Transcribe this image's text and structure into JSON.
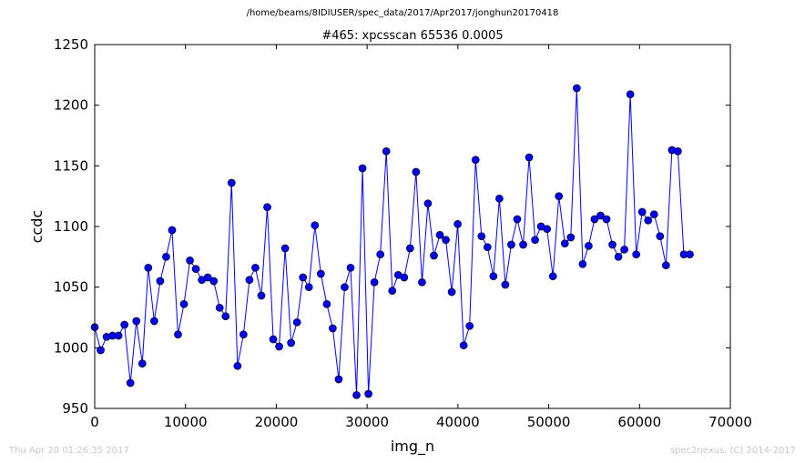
{
  "suptitle": "/home/beams/8IDIUSER/spec_data/2017/Apr2017/jonghun20170418",
  "footer_left": "Thu Apr 20 01:26:35 2017",
  "footer_right": "spec2nexus, (C) 2014-2017",
  "colors": {
    "series": "#0000ff",
    "marker_edge": "#000000"
  },
  "chart_data": {
    "type": "line",
    "title": "#465: xpcsscan 65536 0.0005",
    "xlabel": "img_n",
    "ylabel": "ccdc",
    "xlim": [
      0,
      70000
    ],
    "ylim": [
      950,
      1250
    ],
    "xticks": [
      0,
      10000,
      20000,
      30000,
      40000,
      50000,
      60000,
      70000
    ],
    "yticks": [
      950,
      1000,
      1050,
      1100,
      1150,
      1200,
      1250
    ],
    "grid": false,
    "series": [
      {
        "markers": "circle",
        "x": [
          0,
          655,
          1311,
          1966,
          2621,
          3277,
          3932,
          4587,
          5243,
          5898,
          6554,
          7209,
          7864,
          8520,
          9175,
          9830,
          10486,
          11141,
          11796,
          12452,
          13107,
          13763,
          14418,
          15073,
          15729,
          16384,
          17039,
          17695,
          18350,
          19005,
          19661,
          20316,
          20972,
          21627,
          22282,
          22938,
          23593,
          24248,
          24904,
          25559,
          26214,
          26870,
          27525,
          28181,
          28836,
          29491,
          30147,
          30802,
          31457,
          32113,
          32768,
          33423,
          34079,
          34734,
          35389,
          36045,
          36700,
          37356,
          38011,
          38666,
          39322,
          39977,
          40632,
          41288,
          41943,
          42598,
          43254,
          43909,
          44565,
          45220,
          45875,
          46531,
          47186,
          47841,
          48497,
          49152,
          49807,
          50463,
          51118,
          51774,
          52429,
          53084,
          53740,
          54395,
          55050,
          55706,
          56361,
          57016,
          57672,
          58327,
          58983,
          59638,
          60293,
          60949,
          61604,
          62259,
          62915,
          63570,
          64225,
          64881,
          65536
        ],
        "values": [
          1017,
          998,
          1009,
          1010,
          1010,
          1019,
          971,
          1022,
          987,
          1066,
          1022,
          1055,
          1075,
          1097,
          1011,
          1036,
          1072,
          1065,
          1056,
          1058,
          1055,
          1033,
          1026,
          1136,
          985,
          1011,
          1056,
          1066,
          1043,
          1116,
          1007,
          1001,
          1082,
          1004,
          1021,
          1058,
          1050,
          1101,
          1061,
          1036,
          1016,
          974,
          1050,
          1066,
          961,
          1148,
          962,
          1054,
          1077,
          1162,
          1047,
          1060,
          1058,
          1082,
          1145,
          1054,
          1119,
          1076,
          1093,
          1089,
          1046,
          1102,
          1002,
          1018,
          1155,
          1092,
          1083,
          1059,
          1123,
          1052,
          1085,
          1106,
          1085,
          1157,
          1089,
          1100,
          1098,
          1059,
          1125,
          1086,
          1091,
          1214,
          1069,
          1084,
          1106,
          1109,
          1106,
          1085,
          1075,
          1081,
          1209,
          1077,
          1112,
          1105,
          1110,
          1092,
          1068,
          1163,
          1162,
          1077,
          1077
        ]
      }
    ]
  }
}
